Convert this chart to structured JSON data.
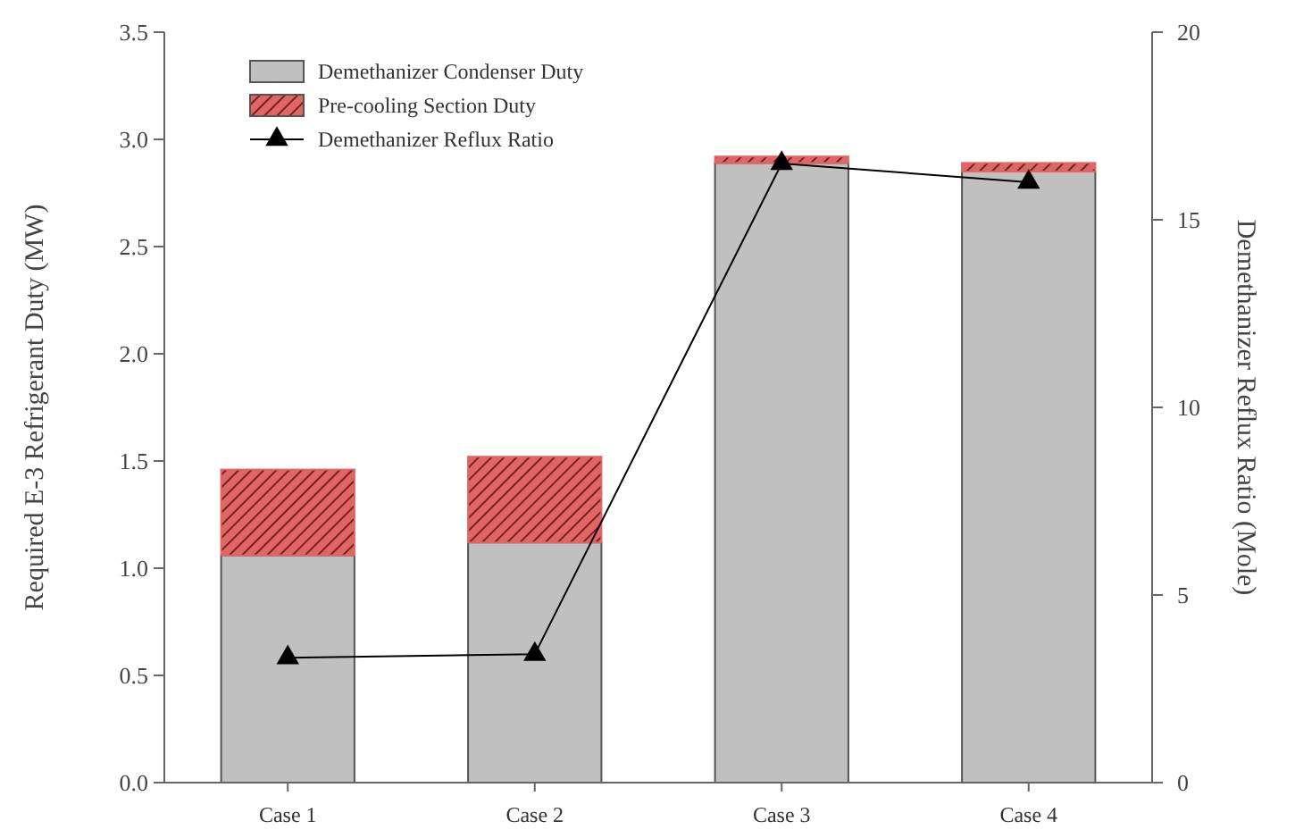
{
  "chart_data": {
    "type": "bar",
    "stacked": true,
    "categories": [
      "Case 1",
      "Case 2",
      "Case 3",
      "Case 4"
    ],
    "ylabel": "Required E-3 Refrigerant Duty (MW)",
    "y2label": "Demethanizer Reflux Ratio (Mole)",
    "ylim": [
      0,
      3.5
    ],
    "yticks": [
      {
        "value": 0,
        "label": "0.0"
      },
      {
        "value": 0.5,
        "label": "0.5"
      },
      {
        "value": 1,
        "label": "1.0"
      },
      {
        "value": 1.5,
        "label": "1.5"
      },
      {
        "value": 2,
        "label": "2.0"
      },
      {
        "value": 2.5,
        "label": "2.5"
      },
      {
        "value": 3,
        "label": "3.0"
      },
      {
        "value": 3.5,
        "label": "3.5"
      }
    ],
    "y2lim": [
      0,
      20
    ],
    "y2ticks": [
      0,
      5,
      10,
      15,
      20
    ],
    "legend": "top left",
    "grid": false,
    "series": [
      {
        "name": "Demethanizer Condenser Duty",
        "color": "#c0c0c0",
        "values": [
          1.06,
          1.12,
          2.89,
          2.85
        ]
      },
      {
        "name": "Pre-cooling Section Duty",
        "color": "#e06666",
        "values": [
          0.4,
          0.4,
          0.03,
          0.04
        ]
      },
      {
        "name": "Demethanizer Reflux Ratio",
        "type": "line",
        "axis": "y2",
        "color": "#000000",
        "marker": "triangle",
        "line_style": "solid",
        "values": [
          3.33,
          3.42,
          16.5,
          16.0
        ]
      }
    ]
  }
}
